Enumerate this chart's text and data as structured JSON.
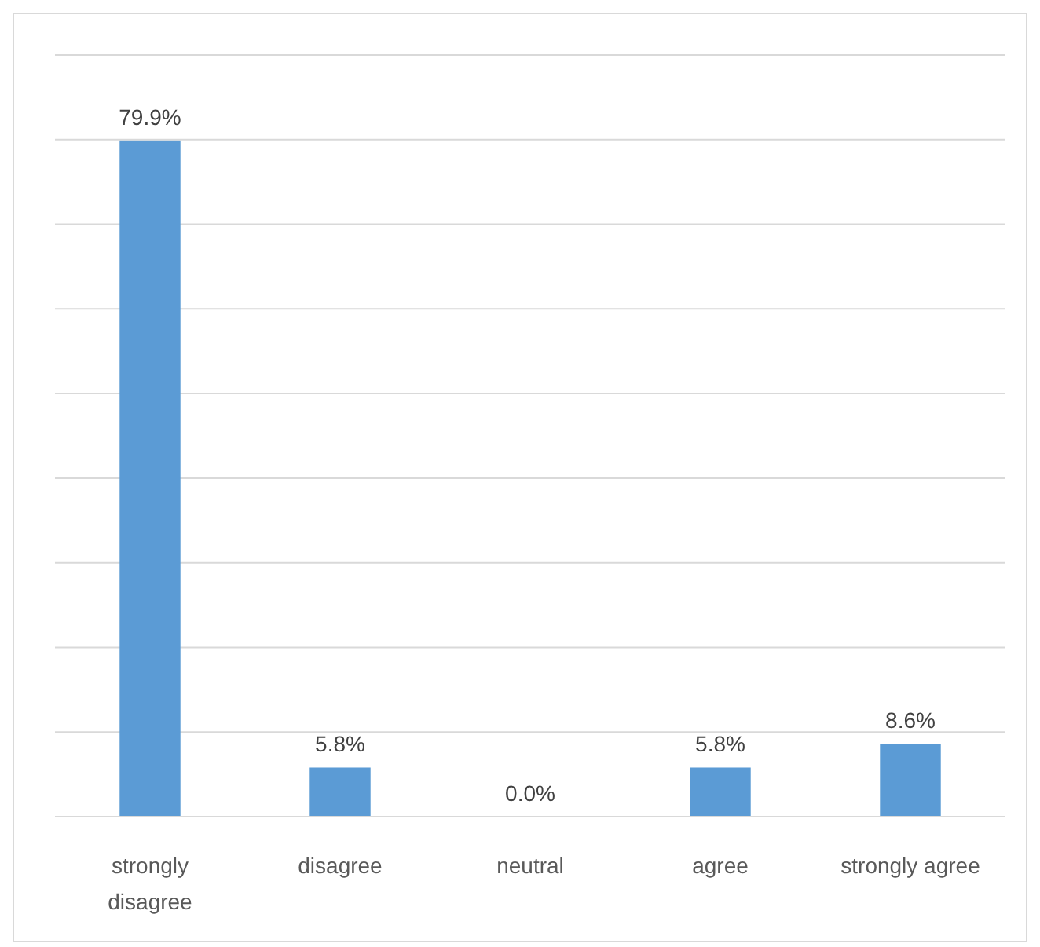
{
  "chart_data": {
    "type": "bar",
    "categories": [
      "strongly disagree",
      "disagree",
      "neutral",
      "agree",
      "strongly agree"
    ],
    "values": [
      79.9,
      5.8,
      0.0,
      5.8,
      8.6
    ],
    "value_labels": [
      "79.9%",
      "5.8%",
      "0.0%",
      "5.8%",
      "8.6%"
    ],
    "color": "#5b9bd5",
    "ylim": [
      0,
      90
    ],
    "yticks": [
      {
        "value": 0,
        "label": null
      },
      {
        "value": 10,
        "label": null
      },
      {
        "value": 20,
        "label": null
      },
      {
        "value": 30,
        "label": null
      },
      {
        "value": 40,
        "label": null
      },
      {
        "value": 50,
        "label": null
      },
      {
        "value": 60,
        "label": null
      },
      {
        "value": 70,
        "label": null
      },
      {
        "value": 80,
        "label": null
      },
      {
        "value": 90,
        "label": null
      }
    ],
    "grid": "y",
    "tick_labels": "x"
  }
}
